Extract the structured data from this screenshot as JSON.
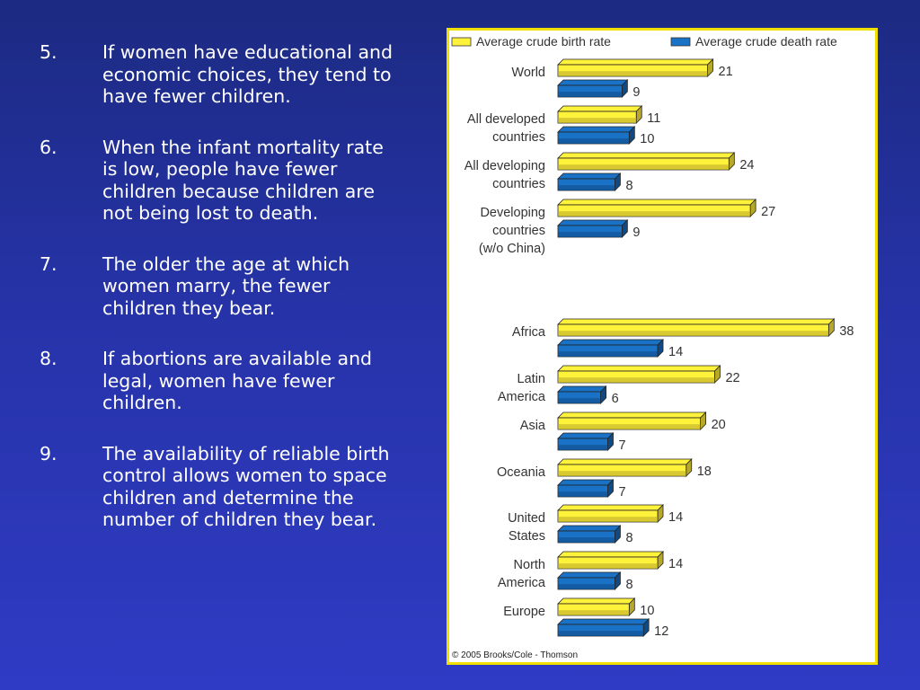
{
  "points": [
    {
      "num": "5.",
      "text": "If women have educational and economic choices, they tend to have fewer children."
    },
    {
      "num": "6.",
      "text": "When the infant mortality rate is low, people have fewer children because children are not being lost to death."
    },
    {
      "num": "7.",
      "text": "The older the age at which women marry, the fewer children they bear."
    },
    {
      "num": "8.",
      "text": "If abortions are available and legal, women have fewer children."
    },
    {
      "num": "9.",
      "text": "The availability of reliable birth control allows women to space children and determine the number of children they bear."
    }
  ],
  "chart_data": {
    "type": "bar",
    "orientation": "horizontal",
    "categories": [
      {
        "label_lines": [
          "World"
        ]
      },
      {
        "label_lines": [
          "All developed",
          "countries"
        ]
      },
      {
        "label_lines": [
          "All developing",
          "countries"
        ]
      },
      {
        "label_lines": [
          "Developing",
          "countries",
          "(w/o China)"
        ]
      },
      {
        "label_lines": [
          "Africa"
        ]
      },
      {
        "label_lines": [
          "Latin",
          "America"
        ]
      },
      {
        "label_lines": [
          "Asia"
        ]
      },
      {
        "label_lines": [
          "Oceania"
        ]
      },
      {
        "label_lines": [
          "United",
          "States"
        ]
      },
      {
        "label_lines": [
          "North",
          "America"
        ]
      },
      {
        "label_lines": [
          "Europe"
        ]
      }
    ],
    "series": [
      {
        "name": "Average crude birth rate",
        "color": "#fff23a",
        "side": "#b8a82a",
        "values": [
          21,
          11,
          24,
          27,
          38,
          22,
          20,
          18,
          14,
          14,
          10
        ]
      },
      {
        "name": "Average crude death rate",
        "color": "#1a72c6",
        "side": "#0f4a86",
        "values": [
          9,
          10,
          8,
          9,
          14,
          6,
          7,
          7,
          8,
          8,
          12
        ]
      }
    ],
    "legend_position": "top",
    "grid": false,
    "footer": "© 2005 Brooks/Cole - Thomson"
  }
}
